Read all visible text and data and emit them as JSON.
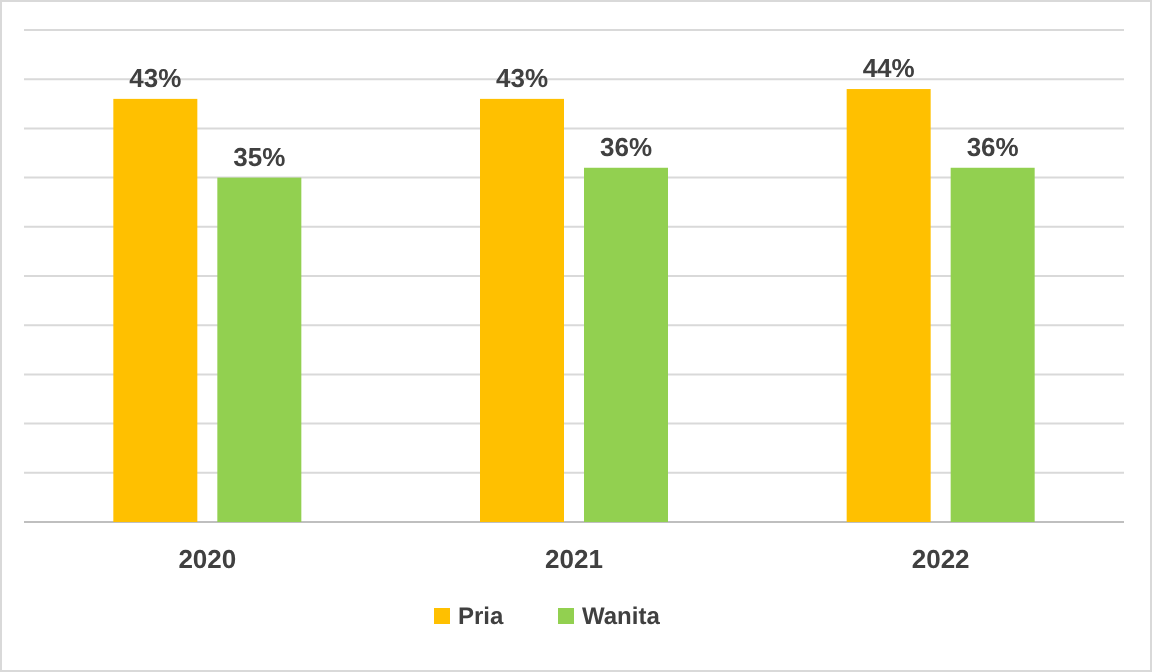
{
  "chart_data": {
    "type": "bar",
    "categories": [
      "2020",
      "2021",
      "2022"
    ],
    "series": [
      {
        "name": "Pria",
        "color": "#ffc000",
        "values": [
          43,
          43,
          44
        ],
        "value_labels": [
          "43%",
          "43%",
          "44%"
        ]
      },
      {
        "name": "Wanita",
        "color": "#92d050",
        "values": [
          35,
          36,
          36
        ],
        "value_labels": [
          "35%",
          "36%",
          "36%"
        ]
      }
    ],
    "ylim": [
      0,
      50
    ],
    "yticks": [
      {
        "value": 0,
        "label": null
      },
      {
        "value": 5,
        "label": null
      },
      {
        "value": 10,
        "label": null
      },
      {
        "value": 15,
        "label": null
      },
      {
        "value": 20,
        "label": null
      },
      {
        "value": 25,
        "label": null
      },
      {
        "value": 30,
        "label": null
      },
      {
        "value": 35,
        "label": null
      },
      {
        "value": 40,
        "label": null
      },
      {
        "value": 45,
        "label": null
      },
      {
        "value": 50,
        "label": null
      }
    ],
    "tick_labels": "x",
    "grid": "y",
    "legend": "bottom"
  }
}
